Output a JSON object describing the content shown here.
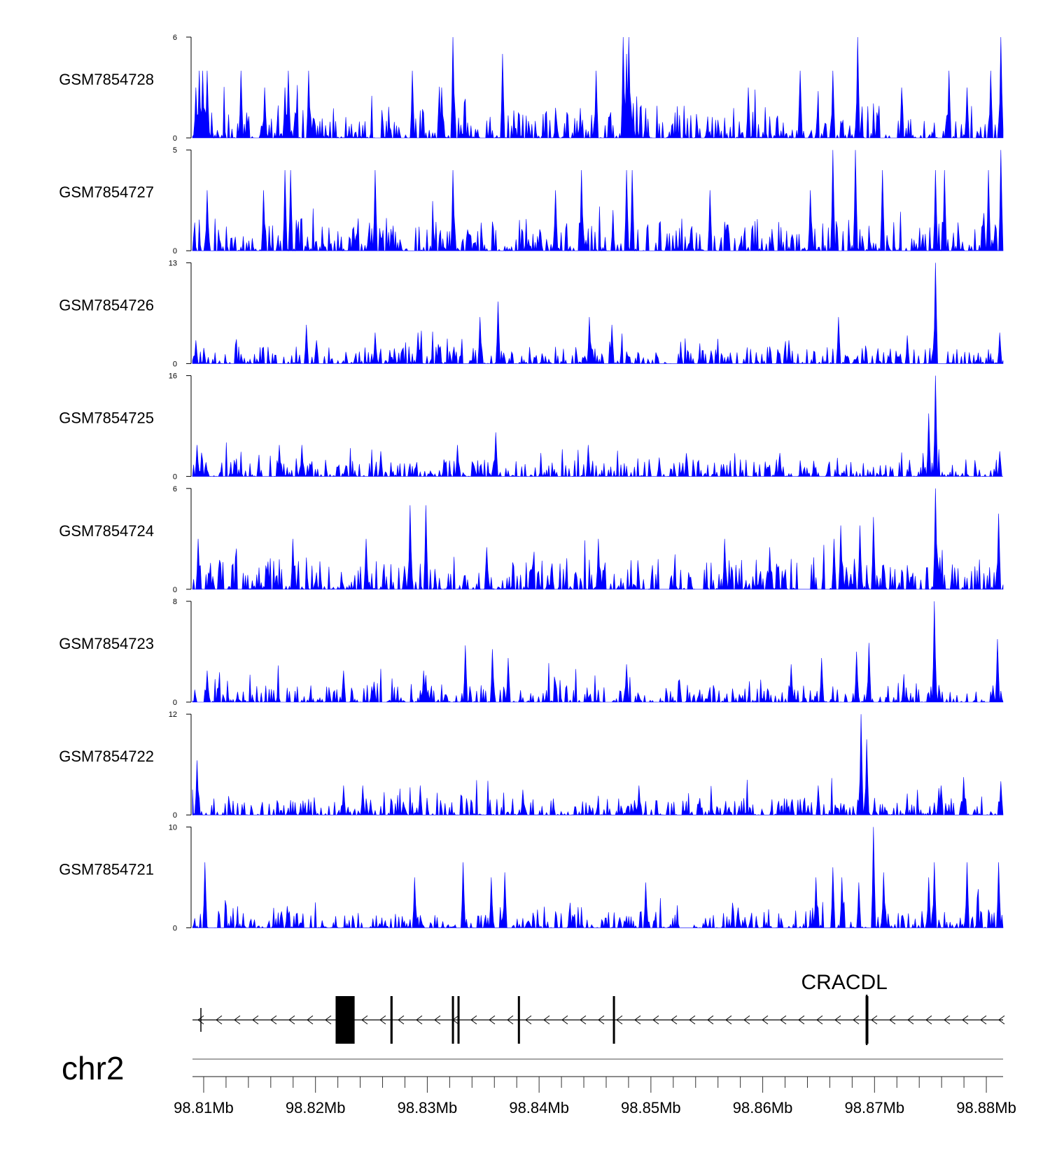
{
  "chart_data": {
    "type": "area",
    "title": "",
    "chromosome": "chr2",
    "x_range_bp": [
      98809000,
      98881500
    ],
    "x_ticks": [
      {
        "value": 98810000,
        "label": "98.81Mb"
      },
      {
        "value": 98820000,
        "label": "98.82Mb"
      },
      {
        "value": 98830000,
        "label": "98.83Mb"
      },
      {
        "value": 98840000,
        "label": "98.84Mb"
      },
      {
        "value": 98850000,
        "label": "98.85Mb"
      },
      {
        "value": 98860000,
        "label": "98.86Mb"
      },
      {
        "value": 98870000,
        "label": "98.87Mb"
      },
      {
        "value": 98880000,
        "label": "98.88Mb"
      }
    ],
    "color": "#0000ff",
    "series": [
      {
        "name": "GSM7854728",
        "ymin": 0,
        "ymax": 6,
        "ymin_label": "0",
        "ymax_label": "6",
        "peaks": [
          [
            98809300,
            3
          ],
          [
            98809600,
            4
          ],
          [
            98809900,
            4
          ],
          [
            98810300,
            4
          ],
          [
            98813300,
            4
          ],
          [
            98815500,
            3
          ],
          [
            98817300,
            3
          ],
          [
            98817600,
            4
          ],
          [
            98819400,
            4
          ],
          [
            98828700,
            4
          ],
          [
            98831300,
            3
          ],
          [
            98832300,
            6
          ],
          [
            98836700,
            5
          ],
          [
            98845100,
            4
          ],
          [
            98847500,
            6
          ],
          [
            98847800,
            5
          ],
          [
            98848000,
            6
          ],
          [
            98858700,
            3
          ],
          [
            98863300,
            4
          ],
          [
            98866300,
            4
          ],
          [
            98868500,
            6
          ],
          [
            98872400,
            3
          ],
          [
            98876700,
            4
          ],
          [
            98878300,
            3
          ],
          [
            98880400,
            4
          ],
          [
            98881300,
            6
          ]
        ]
      },
      {
        "name": "GSM7854727",
        "ymin": 0,
        "ymax": 5,
        "ymin_label": "0",
        "ymax_label": "5",
        "peaks": [
          [
            98810300,
            3
          ],
          [
            98815400,
            3
          ],
          [
            98817300,
            4
          ],
          [
            98817800,
            4
          ],
          [
            98825300,
            4
          ],
          [
            98832300,
            4
          ],
          [
            98841500,
            3
          ],
          [
            98843800,
            4
          ],
          [
            98847800,
            4
          ],
          [
            98848300,
            4
          ],
          [
            98855300,
            3
          ],
          [
            98864300,
            3
          ],
          [
            98866300,
            5
          ],
          [
            98868300,
            5
          ],
          [
            98870700,
            4
          ],
          [
            98875500,
            4
          ],
          [
            98876300,
            4
          ],
          [
            98880200,
            4
          ],
          [
            98881300,
            5
          ]
        ]
      },
      {
        "name": "GSM7854726",
        "ymin": 0,
        "ymax": 13,
        "ymin_label": "0",
        "ymax_label": "13",
        "peaks": [
          [
            98809300,
            3
          ],
          [
            98819200,
            5
          ],
          [
            98825300,
            4
          ],
          [
            98829200,
            4
          ],
          [
            98834700,
            6
          ],
          [
            98836300,
            8
          ],
          [
            98844500,
            6
          ],
          [
            98846500,
            5
          ],
          [
            98862300,
            3
          ],
          [
            98866800,
            6
          ],
          [
            98875500,
            13
          ],
          [
            98881200,
            4
          ]
        ]
      },
      {
        "name": "GSM7854725",
        "ymin": 0,
        "ymax": 16,
        "ymin_label": "0",
        "ymax_label": "16",
        "peaks": [
          [
            98809400,
            5
          ],
          [
            98816800,
            5
          ],
          [
            98818800,
            5
          ],
          [
            98825800,
            4
          ],
          [
            98832700,
            5
          ],
          [
            98836100,
            7
          ],
          [
            98844400,
            5
          ],
          [
            98850700,
            3
          ],
          [
            98874800,
            10
          ],
          [
            98875500,
            16
          ],
          [
            98881200,
            4
          ]
        ]
      },
      {
        "name": "GSM7854724",
        "ymin": 0,
        "ymax": 6,
        "ymin_label": "0",
        "ymax_label": "6",
        "peaks": [
          [
            98809500,
            3
          ],
          [
            98818000,
            3
          ],
          [
            98824500,
            3
          ],
          [
            98828500,
            5
          ],
          [
            98829900,
            5
          ],
          [
            98835300,
            2.5
          ],
          [
            98845300,
            3
          ],
          [
            98856600,
            3
          ],
          [
            98860600,
            2.5
          ],
          [
            98866400,
            3
          ],
          [
            98867000,
            3.8
          ],
          [
            98868700,
            3.8
          ],
          [
            98869900,
            4.3
          ],
          [
            98875500,
            6
          ],
          [
            98881100,
            4.5
          ]
        ]
      },
      {
        "name": "GSM7854723",
        "ymin": 0,
        "ymax": 8,
        "ymin_label": "0",
        "ymax_label": "8",
        "peaks": [
          [
            98810300,
            2.5
          ],
          [
            98822500,
            2.5
          ],
          [
            98829700,
            2.5
          ],
          [
            98833400,
            4.5
          ],
          [
            98835800,
            4.2
          ],
          [
            98837200,
            3.5
          ],
          [
            98847800,
            3
          ],
          [
            98862500,
            3
          ],
          [
            98865300,
            3.5
          ],
          [
            98868400,
            4
          ],
          [
            98869500,
            4.7
          ],
          [
            98875300,
            8
          ],
          [
            98881000,
            5
          ]
        ]
      },
      {
        "name": "GSM7854722",
        "ymin": 0,
        "ymax": 12,
        "ymin_label": "0",
        "ymax_label": "12",
        "peaks": [
          [
            98809400,
            6.5
          ],
          [
            98822500,
            3.5
          ],
          [
            98824200,
            3.5
          ],
          [
            98829400,
            3.5
          ],
          [
            98838500,
            3
          ],
          [
            98848900,
            3.5
          ],
          [
            98865000,
            3.5
          ],
          [
            98868800,
            12
          ],
          [
            98869300,
            9
          ],
          [
            98876000,
            3.5
          ],
          [
            98878000,
            4.5
          ],
          [
            98881300,
            4
          ]
        ]
      },
      {
        "name": "GSM7854721",
        "ymin": 0,
        "ymax": 10,
        "ymin_label": "0",
        "ymax_label": "10",
        "peaks": [
          [
            98810100,
            6.5
          ],
          [
            98828900,
            5
          ],
          [
            98833200,
            6.5
          ],
          [
            98835700,
            5
          ],
          [
            98836900,
            5.5
          ],
          [
            98849500,
            4.5
          ],
          [
            98857800,
            2
          ],
          [
            98864800,
            5
          ],
          [
            98866300,
            6
          ],
          [
            98867100,
            5
          ],
          [
            98868600,
            4.5
          ],
          [
            98869900,
            10
          ],
          [
            98870800,
            5.5
          ],
          [
            98874800,
            5
          ],
          [
            98875300,
            6.5
          ],
          [
            98878300,
            6.5
          ],
          [
            98881100,
            6.5
          ]
        ]
      }
    ],
    "gene_track": {
      "gene_name": "CRACDL",
      "strand": "-",
      "start_bp": 98809000,
      "end_bp": 98881500,
      "exons": [
        [
          98821800,
          98823500
        ],
        [
          98826700,
          98826900
        ],
        [
          98832200,
          98832350
        ],
        [
          98832700,
          98832850
        ],
        [
          98838100,
          98838250
        ],
        [
          98846600,
          98846750
        ],
        [
          98869200,
          98869450
        ]
      ]
    }
  }
}
